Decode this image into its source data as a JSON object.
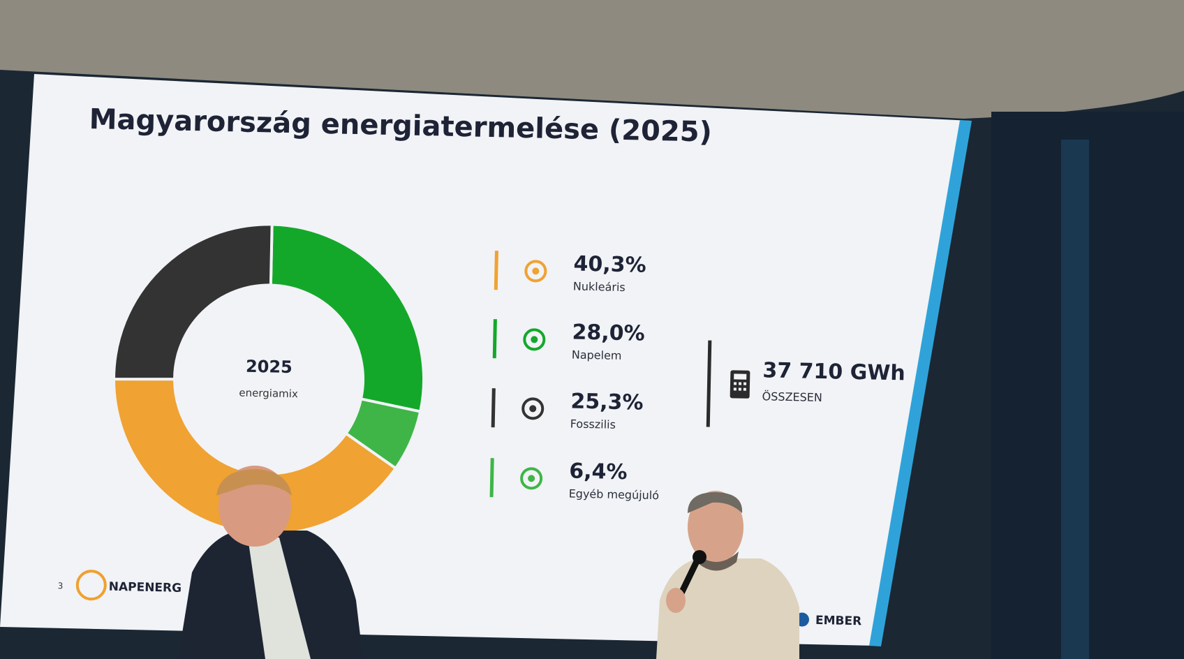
{
  "chart_data": {
    "type": "pie",
    "title": "Magyarország energiatermelése (2025)",
    "categories": [
      "Nukleáris",
      "Napelem",
      "Fosszilis",
      "Egyéb megújuló"
    ],
    "values": [
      40.3,
      28.0,
      25.3,
      6.4
    ],
    "value_labels": [
      "40,3%",
      "28,0%",
      "25,3%",
      "6,4%"
    ],
    "colors": [
      "#f0a232",
      "#14a82a",
      "#333333",
      "#3fb548"
    ],
    "center_label": "2025",
    "center_sublabel": "energiamix",
    "total_label": "37 710 GWh",
    "total_caption": "ÖSSZESEN"
  },
  "footer": {
    "page_number": "3",
    "left_logo": "NAPENERG",
    "right_logo": "EMBER"
  }
}
